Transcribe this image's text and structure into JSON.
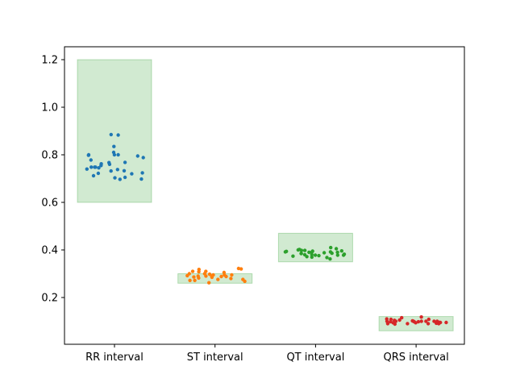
{
  "chart_data": {
    "type": "scatter",
    "title": "",
    "xlabel": "",
    "ylabel": "",
    "ylim": [
      0.0,
      1.25
    ],
    "yticks": [
      0.2,
      0.4,
      0.6,
      0.8,
      1.0,
      1.2
    ],
    "ytick_labels": [
      "0.2",
      "0.4",
      "0.6",
      "0.8",
      "1.0",
      "1.2"
    ],
    "grid": false,
    "legend": "none",
    "range_box_color": "#2ca02c",
    "categories": [
      "RR interval",
      "ST interval",
      "QT interval",
      "QRS interval"
    ],
    "ranges": [
      {
        "category": "RR interval",
        "low": 0.6,
        "high": 1.2
      },
      {
        "category": "ST interval",
        "low": 0.26,
        "high": 0.3
      },
      {
        "category": "QT interval",
        "low": 0.35,
        "high": 0.47
      },
      {
        "category": "QRS interval",
        "low": 0.06,
        "high": 0.12
      }
    ],
    "series": [
      {
        "category": "RR interval",
        "color": "#1f77b4",
        "values": [
          0.835,
          0.883,
          0.778,
          0.745,
          0.732,
          0.703,
          0.8,
          0.795,
          0.697,
          0.767,
          0.762,
          0.72,
          0.733,
          0.798,
          0.8,
          0.722,
          0.705,
          0.712,
          0.8,
          0.81,
          0.748,
          0.74,
          0.698,
          0.788,
          0.748,
          0.885,
          0.724,
          0.748,
          0.76,
          0.738,
          0.768,
          0.755
        ]
      },
      {
        "category": "ST interval",
        "color": "#ff7f0e",
        "values": [
          0.272,
          0.268,
          0.29,
          0.282,
          0.276,
          0.3,
          0.286,
          0.295,
          0.29,
          0.31,
          0.3,
          0.32,
          0.318,
          0.322,
          0.295,
          0.308,
          0.288,
          0.262,
          0.28,
          0.295,
          0.31,
          0.29,
          0.285,
          0.272,
          0.292,
          0.298,
          0.288,
          0.305,
          0.276
        ]
      },
      {
        "category": "QT interval",
        "color": "#2ca02c",
        "values": [
          0.398,
          0.39,
          0.378,
          0.37,
          0.405,
          0.395,
          0.38,
          0.385,
          0.402,
          0.392,
          0.374,
          0.398,
          0.386,
          0.39,
          0.382,
          0.396,
          0.378,
          0.41,
          0.388,
          0.376,
          0.394,
          0.38,
          0.372,
          0.4,
          0.39,
          0.368,
          0.362,
          0.385,
          0.378,
          0.392
        ]
      },
      {
        "category": "QRS interval",
        "color": "#d62728",
        "values": [
          0.09,
          0.118,
          0.102,
          0.108,
          0.095,
          0.1,
          0.096,
          0.1,
          0.098,
          0.094,
          0.1,
          0.095,
          0.115,
          0.1,
          0.088,
          0.108,
          0.09,
          0.1,
          0.09,
          0.105,
          0.096,
          0.1,
          0.09,
          0.098,
          0.11,
          0.098,
          0.092,
          0.1,
          0.104,
          0.094
        ]
      }
    ]
  }
}
